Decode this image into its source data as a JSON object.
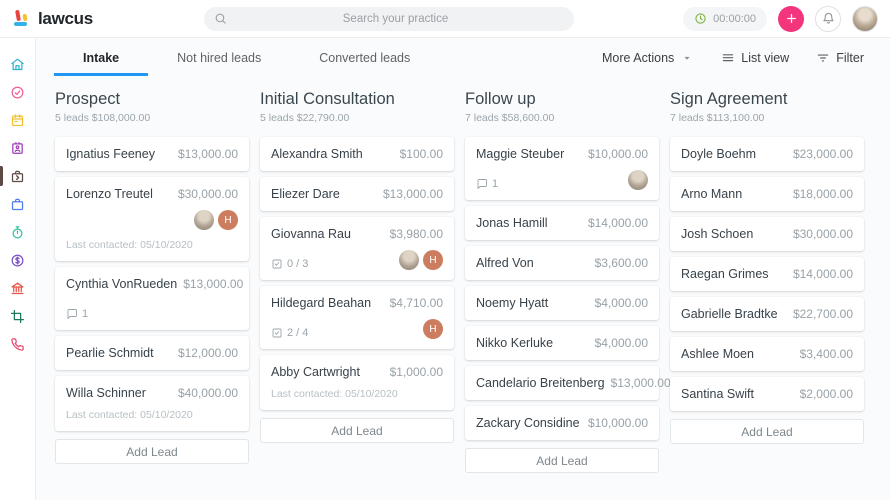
{
  "header": {
    "brand": "lawcus",
    "search_placeholder": "Search your practice",
    "timer": "00:00:00"
  },
  "tabs": [
    {
      "label": "Intake",
      "active": true
    },
    {
      "label": "Not hired leads",
      "active": false
    },
    {
      "label": "Converted leads",
      "active": false
    }
  ],
  "actions": {
    "more_actions": "More Actions",
    "list_view": "List view",
    "filter": "Filter"
  },
  "sidebar": {
    "items": [
      {
        "name": "home",
        "icon": "home",
        "color": "#2bb3d3",
        "active": false
      },
      {
        "name": "tasks",
        "icon": "check-circle",
        "color": "#ef5f9b",
        "active": false
      },
      {
        "name": "calendar",
        "icon": "calendar",
        "color": "#f2c12e",
        "active": false
      },
      {
        "name": "contacts",
        "icon": "contact-card",
        "color": "#9c3fb5",
        "active": false
      },
      {
        "name": "leads",
        "icon": "briefcase-arrow",
        "color": "#5d4a42",
        "active": true
      },
      {
        "name": "matters",
        "icon": "briefcase",
        "color": "#4f7df0",
        "active": false
      },
      {
        "name": "time",
        "icon": "stopwatch",
        "color": "#2ec4a5",
        "active": false
      },
      {
        "name": "billing",
        "icon": "dollar-circle",
        "color": "#7b52c9",
        "active": false
      },
      {
        "name": "accounting",
        "icon": "bank",
        "color": "#e8564a",
        "active": false
      },
      {
        "name": "trust",
        "icon": "crop",
        "color": "#1f7a5c",
        "active": false
      },
      {
        "name": "calls",
        "icon": "phone",
        "color": "#e8476b",
        "active": false
      }
    ]
  },
  "board": {
    "add_lead_label": "Add Lead",
    "columns": [
      {
        "title": "Prospect",
        "summary": "5 leads $108,000.00",
        "cards": [
          {
            "name": "Ignatius Feeney",
            "amount": "$13,000.00"
          },
          {
            "name": "Lorenzo Treutel",
            "amount": "$30,000.00",
            "avatars": [
              "photo",
              "H"
            ],
            "last_contacted": "Last contacted: 05/10/2020"
          },
          {
            "name": "Cynthia VonRueden",
            "amount": "$13,000.00",
            "comments": "1"
          },
          {
            "name": "Pearlie Schmidt",
            "amount": "$12,000.00"
          },
          {
            "name": "Willa Schinner",
            "amount": "$40,000.00",
            "last_contacted": "Last contacted: 05/10/2020"
          }
        ]
      },
      {
        "title": "Initial Consultation",
        "summary": "5 leads $22,790.00",
        "cards": [
          {
            "name": "Alexandra Smith",
            "amount": "$100.00"
          },
          {
            "name": "Eliezer Dare",
            "amount": "$13,000.00"
          },
          {
            "name": "Giovanna Rau",
            "amount": "$3,980.00",
            "checklist": "0 / 3",
            "avatars": [
              "photo",
              "H"
            ]
          },
          {
            "name": "Hildegard Beahan",
            "amount": "$4,710.00",
            "checklist": "2 / 4",
            "avatars": [
              "H"
            ]
          },
          {
            "name": "Abby Cartwright",
            "amount": "$1,000.00",
            "last_contacted": "Last contacted: 05/10/2020"
          }
        ]
      },
      {
        "title": "Follow up",
        "summary": "7 leads $58,600.00",
        "cards": [
          {
            "name": "Maggie Steuber",
            "amount": "$10,000.00",
            "comments": "1",
            "avatars": [
              "photo"
            ]
          },
          {
            "name": "Jonas Hamill",
            "amount": "$14,000.00"
          },
          {
            "name": "Alfred Von",
            "amount": "$3,600.00"
          },
          {
            "name": "Noemy Hyatt",
            "amount": "$4,000.00"
          },
          {
            "name": "Nikko Kerluke",
            "amount": "$4,000.00"
          },
          {
            "name": "Candelario Breitenberg",
            "amount": "$13,000.00"
          },
          {
            "name": "Zackary Considine",
            "amount": "$10,000.00"
          }
        ]
      },
      {
        "title": "Sign Agreement",
        "summary": "7 leads $113,100.00",
        "cards": [
          {
            "name": "Doyle Boehm",
            "amount": "$23,000.00"
          },
          {
            "name": "Arno Mann",
            "amount": "$18,000.00"
          },
          {
            "name": "Josh Schoen",
            "amount": "$30,000.00"
          },
          {
            "name": "Raegan Grimes",
            "amount": "$14,000.00"
          },
          {
            "name": "Gabrielle Bradtke",
            "amount": "$22,700.00"
          },
          {
            "name": "Ashlee Moen",
            "amount": "$3,400.00"
          },
          {
            "name": "Santina Swift",
            "amount": "$2,000.00"
          }
        ]
      }
    ]
  }
}
